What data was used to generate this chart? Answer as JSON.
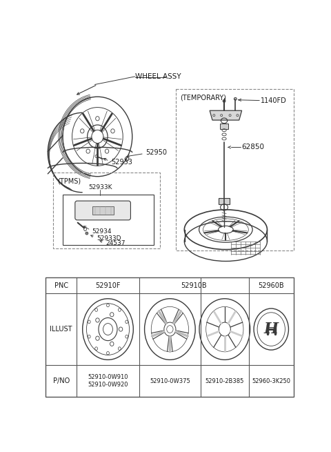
{
  "bg_color": "#ffffff",
  "fig_width": 4.8,
  "fig_height": 6.55,
  "dpi": 100,
  "lc": "#3a3a3a",
  "dc": "#888888",
  "tc": "#1a1a1a",
  "diagram_labels": {
    "wheel_assy": "WHEEL ASSY",
    "temporary": "(TEMPORARY)",
    "tpms": "(TPMS)",
    "p52950": "52950",
    "p52933": "52933",
    "p52933K": "52933K",
    "p52934": "52934",
    "p52933D": "52933D",
    "p24537": "24537",
    "p1140FD": "1140FD",
    "p62850": "62850"
  },
  "table_pnc": [
    "PNC",
    "52910F",
    "52910B",
    "52960B"
  ],
  "table_illust": [
    "ILLUST",
    "",
    "",
    ""
  ],
  "table_pno": [
    "P/NO",
    "52910-0W910\n52910-0W920",
    "52910-0W375\n52910-2B385",
    "52960-3K250"
  ]
}
